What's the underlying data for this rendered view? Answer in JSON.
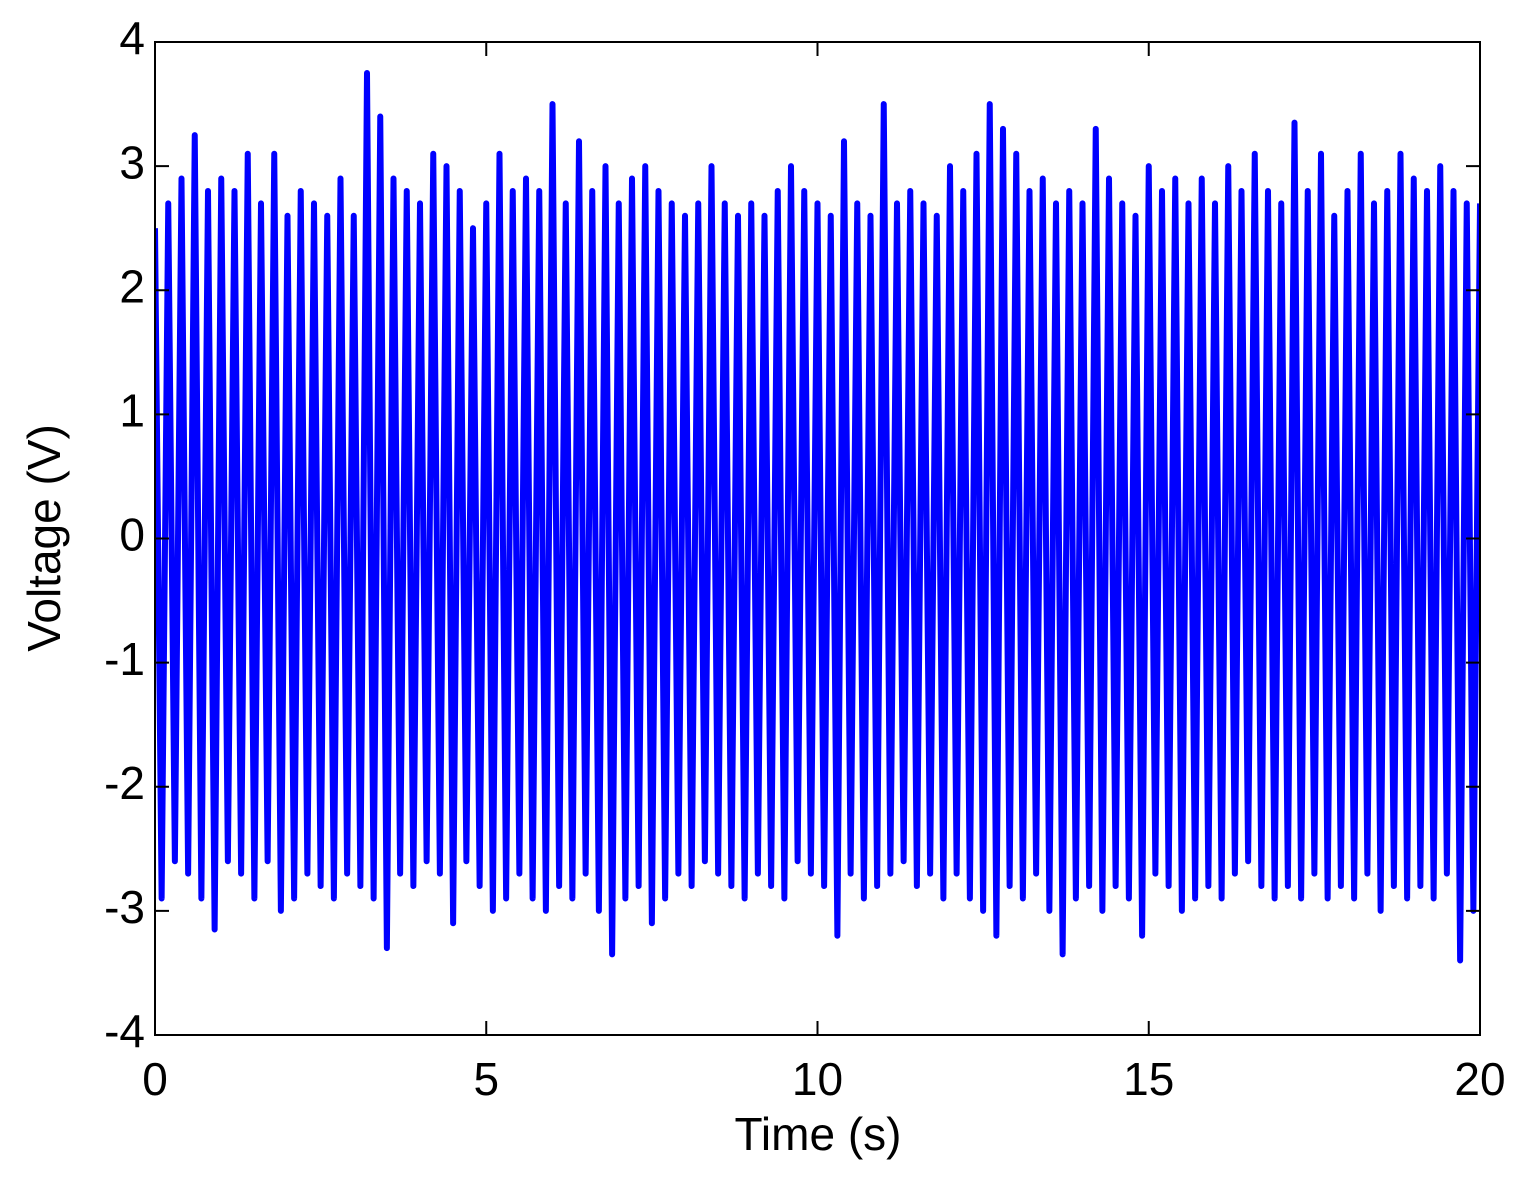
{
  "chart_data": {
    "type": "line",
    "x_label": "Time (s)",
    "y_label": "Voltage (V)",
    "xlim": [
      0,
      20
    ],
    "ylim": [
      -4,
      4
    ],
    "xticks": [
      0,
      5,
      10,
      15,
      20
    ],
    "yticks": [
      -4,
      -3,
      -2,
      -1,
      0,
      1,
      2,
      3,
      4
    ],
    "grid": false,
    "series": [
      {
        "color": "#0000ff",
        "x": [
          0,
          0.1,
          0.2,
          0.3,
          0.4,
          0.5,
          0.6,
          0.7,
          0.8,
          0.9,
          1,
          1.1,
          1.2,
          1.3,
          1.4,
          1.5,
          1.6,
          1.7,
          1.8,
          1.9,
          2,
          2.1,
          2.2,
          2.3,
          2.4,
          2.5,
          2.6,
          2.7,
          2.8,
          2.9,
          3,
          3.1,
          3.2,
          3.3,
          3.4,
          3.5,
          3.6,
          3.7,
          3.8,
          3.9,
          4,
          4.1,
          4.2,
          4.3,
          4.4,
          4.5,
          4.6,
          4.7,
          4.8,
          4.9,
          5,
          5.1,
          5.2,
          5.3,
          5.4,
          5.5,
          5.6,
          5.7,
          5.8,
          5.9,
          6,
          6.1,
          6.2,
          6.3,
          6.4,
          6.5,
          6.6,
          6.7,
          6.8,
          6.9,
          7,
          7.1,
          7.2,
          7.3,
          7.4,
          7.5,
          7.6,
          7.7,
          7.8,
          7.9,
          8,
          8.1,
          8.2,
          8.3,
          8.4,
          8.5,
          8.6,
          8.7,
          8.8,
          8.9,
          9,
          9.1,
          9.2,
          9.3,
          9.4,
          9.5,
          9.6,
          9.7,
          9.8,
          9.9,
          10,
          10.1,
          10.2,
          10.3,
          10.4,
          10.5,
          10.6,
          10.7,
          10.8,
          10.9,
          11,
          11.1,
          11.2,
          11.3,
          11.4,
          11.5,
          11.6,
          11.7,
          11.8,
          11.9,
          12,
          12.1,
          12.2,
          12.3,
          12.4,
          12.5,
          12.6,
          12.7,
          12.8,
          12.9,
          13,
          13.1,
          13.2,
          13.3,
          13.4,
          13.5,
          13.6,
          13.7,
          13.8,
          13.9,
          14,
          14.1,
          14.2,
          14.3,
          14.4,
          14.5,
          14.6,
          14.7,
          14.8,
          14.9,
          15,
          15.1,
          15.2,
          15.3,
          15.4,
          15.5,
          15.6,
          15.7,
          15.8,
          15.9,
          16,
          16.1,
          16.2,
          16.3,
          16.4,
          16.5,
          16.6,
          16.7,
          16.8,
          16.9,
          17,
          17.1,
          17.2,
          17.3,
          17.4,
          17.5,
          17.6,
          17.7,
          17.8,
          17.9,
          18,
          18.1,
          18.2,
          18.3,
          18.4,
          18.5,
          18.6,
          18.7,
          18.8,
          18.9,
          19,
          19.1,
          19.2,
          19.3,
          19.4,
          19.5,
          19.6,
          19.7,
          19.8,
          19.9,
          20
        ],
        "values": [
          2.5,
          -2.9,
          2.7,
          -2.6,
          2.9,
          -2.7,
          3.25,
          -2.9,
          2.8,
          -3.15,
          2.9,
          -2.6,
          2.8,
          -2.7,
          3.1,
          -2.9,
          2.7,
          -2.6,
          3.1,
          -3.0,
          2.6,
          -2.9,
          2.8,
          -2.7,
          2.7,
          -2.8,
          2.6,
          -2.9,
          2.9,
          -2.7,
          2.6,
          -2.8,
          3.75,
          -2.9,
          3.4,
          -3.3,
          2.9,
          -2.7,
          2.8,
          -2.8,
          2.7,
          -2.6,
          3.1,
          -2.7,
          3.0,
          -3.1,
          2.8,
          -2.6,
          2.5,
          -2.8,
          2.7,
          -3.0,
          3.1,
          -2.9,
          2.8,
          -2.7,
          2.9,
          -2.9,
          2.8,
          -3.0,
          3.5,
          -2.8,
          2.7,
          -2.9,
          3.2,
          -2.7,
          2.8,
          -3.0,
          3.0,
          -3.35,
          2.7,
          -2.9,
          2.9,
          -2.8,
          3.0,
          -3.1,
          2.8,
          -2.9,
          2.7,
          -2.7,
          2.6,
          -2.8,
          2.7,
          -2.6,
          3.0,
          -2.7,
          2.7,
          -2.8,
          2.6,
          -2.9,
          2.7,
          -2.7,
          2.6,
          -2.8,
          2.8,
          -2.9,
          3.0,
          -2.6,
          2.8,
          -2.7,
          2.7,
          -2.8,
          2.6,
          -3.2,
          3.2,
          -2.7,
          2.7,
          -2.9,
          2.6,
          -2.8,
          3.5,
          -2.7,
          2.7,
          -2.6,
          2.8,
          -2.8,
          2.7,
          -2.7,
          2.6,
          -2.9,
          3.0,
          -2.7,
          2.8,
          -2.9,
          3.1,
          -3.0,
          3.5,
          -3.2,
          3.3,
          -2.8,
          3.1,
          -2.9,
          2.8,
          -2.7,
          2.9,
          -3.0,
          2.7,
          -3.35,
          2.8,
          -2.9,
          2.7,
          -2.8,
          3.3,
          -3.0,
          2.9,
          -2.8,
          2.7,
          -2.9,
          2.6,
          -3.2,
          3.0,
          -2.7,
          2.8,
          -2.8,
          2.9,
          -3.0,
          2.7,
          -2.9,
          2.9,
          -2.8,
          2.7,
          -2.9,
          3.0,
          -2.7,
          2.8,
          -2.6,
          3.1,
          -2.8,
          2.8,
          -2.9,
          2.7,
          -2.8,
          3.35,
          -2.9,
          2.8,
          -2.7,
          3.1,
          -2.9,
          2.6,
          -2.8,
          2.8,
          -2.9,
          3.1,
          -2.7,
          2.7,
          -3.0,
          2.8,
          -2.8,
          3.1,
          -2.9,
          2.9,
          -2.8,
          2.8,
          -2.9,
          3.0,
          -2.7,
          2.8,
          -3.4,
          2.7,
          -3.0,
          2.7
        ]
      }
    ]
  }
}
